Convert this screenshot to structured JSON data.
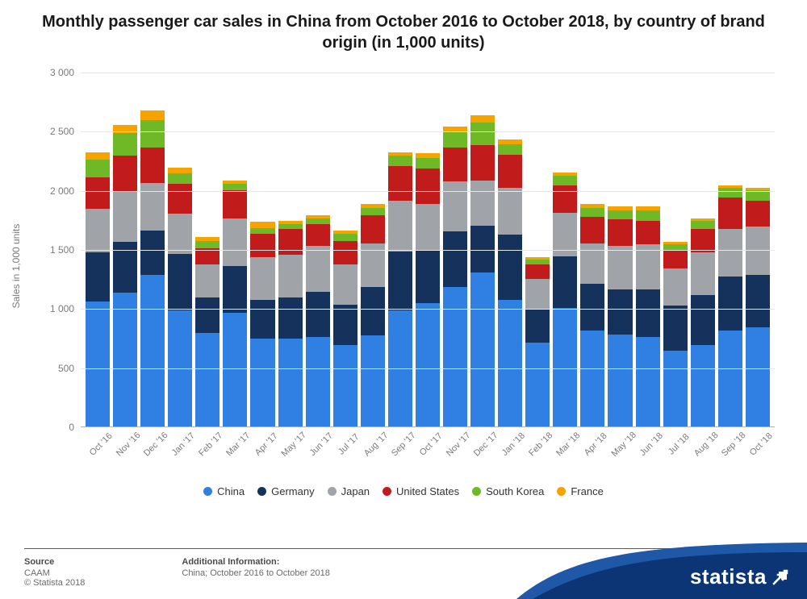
{
  "title": "Monthly passenger car sales in China from October 2016 to October 2018, by country of brand origin (in 1,000 units)",
  "ylabel": "Sales in 1,000 units",
  "chart": {
    "type": "stacked-bar",
    "ymin": 0,
    "ymax": 3000,
    "ytick_step": 500,
    "ytick_labels": [
      "0",
      "500",
      "1 000",
      "1 500",
      "2 000",
      "2 500",
      "3 000"
    ],
    "grid_color": "#e6e6e6",
    "axis_color": "#b0b0b0",
    "plot_bg": "#ffffff",
    "categories": [
      "Oct '16",
      "Nov '16",
      "Dec '16",
      "Jan '17",
      "Feb '17",
      "Mar '17",
      "Apr '17",
      "May '17",
      "Jun '17",
      "Jul '17",
      "Aug '17",
      "Sep '17",
      "Oct '17",
      "Nov '17",
      "Dec '17",
      "Jan '18",
      "Feb '18",
      "Mar '18",
      "Apr '18",
      "May '18",
      "Jun '18",
      "Jul '18",
      "Aug '18",
      "Sep '18",
      "Oct '18"
    ],
    "series": [
      {
        "name": "China",
        "color": "#307fe2",
        "values": [
          1060,
          1130,
          1280,
          980,
          790,
          960,
          740,
          740,
          760,
          690,
          770,
          980,
          1040,
          1180,
          1300,
          1070,
          710,
          1000,
          810,
          780,
          760,
          640,
          690,
          810,
          840
        ]
      },
      {
        "name": "Germany",
        "color": "#15325d",
        "values": [
          410,
          430,
          380,
          480,
          300,
          400,
          330,
          350,
          380,
          340,
          410,
          500,
          450,
          470,
          400,
          550,
          280,
          440,
          400,
          380,
          400,
          380,
          420,
          460,
          440
        ]
      },
      {
        "name": "Japan",
        "color": "#a0a4a8",
        "values": [
          370,
          430,
          400,
          340,
          280,
          400,
          360,
          360,
          390,
          340,
          370,
          430,
          390,
          420,
          380,
          400,
          260,
          370,
          340,
          370,
          380,
          320,
          360,
          400,
          410
        ]
      },
      {
        "name": "United States",
        "color": "#c11b1b",
        "values": [
          270,
          300,
          300,
          250,
          140,
          240,
          200,
          220,
          180,
          200,
          240,
          290,
          300,
          290,
          300,
          280,
          120,
          230,
          220,
          220,
          200,
          150,
          200,
          270,
          220
        ]
      },
      {
        "name": "South Korea",
        "color": "#6eb925",
        "values": [
          150,
          190,
          230,
          90,
          60,
          50,
          50,
          40,
          50,
          60,
          60,
          90,
          90,
          130,
          190,
          90,
          40,
          80,
          80,
          80,
          90,
          50,
          70,
          80,
          90
        ]
      },
      {
        "name": "France",
        "color": "#f6a300",
        "values": [
          60,
          70,
          80,
          50,
          30,
          30,
          50,
          30,
          30,
          30,
          30,
          30,
          40,
          50,
          60,
          40,
          20,
          30,
          30,
          30,
          30,
          20,
          20,
          20,
          20
        ]
      }
    ],
    "tick_fontsize": 12,
    "tick_color": "#7a7a7a",
    "xlabel_rotation": -45
  },
  "legend": {
    "items": [
      "China",
      "Germany",
      "Japan",
      "United States",
      "South Korea",
      "France"
    ],
    "fontsize": 13,
    "text_color": "#333333"
  },
  "footer": {
    "source_label": "Source",
    "source_value": "CAAM",
    "copyright": "© Statista 2018",
    "addl_label": "Additional Information:",
    "addl_value": "China; October 2016 to October 2018"
  },
  "brand": {
    "name": "statista",
    "wave_color": "#0b3574",
    "wave_color2": "#2058a8",
    "text_color": "#ffffff"
  }
}
